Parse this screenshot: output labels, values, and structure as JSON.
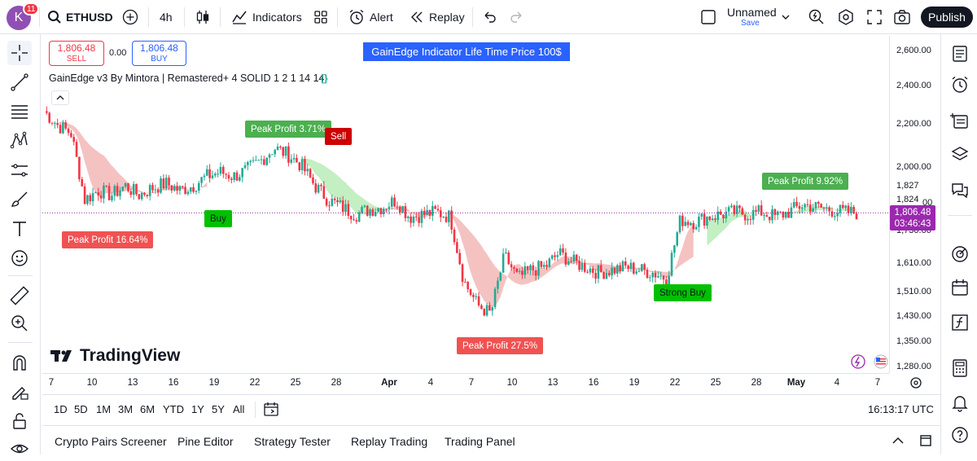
{
  "header": {
    "avatar_letter": "K",
    "notification_count": "11",
    "symbol": "ETHUSD",
    "interval": "4h",
    "indicators_label": "Indicators",
    "alert_label": "Alert",
    "replay_label": "Replay",
    "layout_name": "Unnamed",
    "save_label": "Save",
    "publish_label": "Publish"
  },
  "trade": {
    "sell_price": "1,806.48",
    "sell_label": "SELL",
    "spread": "0.00",
    "buy_price": "1,806.48",
    "buy_label": "BUY"
  },
  "banner_text": "GainEdge Indicator Life Time Price 100$",
  "indicator_legend": "GainEdge v3 By Mintora | Remastered+ 4 SOLID 1 2 1 14 14",
  "indicator_code_icon": "{}",
  "watermark": "TradingView",
  "colors": {
    "up_candle": "#22ab94",
    "down_candle": "#f23645",
    "bull_ribbon": "#b9ecb9",
    "bear_ribbon": "#f3b7b7",
    "price_line": "#9c27b0",
    "accent": "#2962ff"
  },
  "signals": [
    {
      "text": "Peak Profit 3.71%",
      "style": "green"
    },
    {
      "text": "Sell",
      "style": "dark"
    },
    {
      "text": "Buy",
      "style": "bright"
    },
    {
      "text": "Peak Profit 16.64%",
      "style": "red"
    },
    {
      "text": "Peak Profit 9.92%",
      "style": "green"
    },
    {
      "text": "Strong Buy",
      "style": "bright"
    },
    {
      "text": "Peak Profit 27.5%",
      "style": "red"
    }
  ],
  "price_scale": {
    "labels": [
      "2,600.00",
      "2,400.00",
      "2,200.00",
      "2,000.00",
      "1,827",
      "1,824",
      "00",
      "1,730.00",
      "1,610.00",
      "1,510.00",
      "1,430.00",
      "1,350.00",
      "1,280.00"
    ],
    "current_price": "1,806.48",
    "countdown": "03:46:43"
  },
  "time_axis": [
    "7",
    "10",
    "13",
    "16",
    "19",
    "22",
    "25",
    "28",
    "Apr",
    "4",
    "7",
    "10",
    "13",
    "16",
    "19",
    "22",
    "25",
    "28",
    "May",
    "4",
    "7"
  ],
  "ranges": [
    "1D",
    "5D",
    "1M",
    "3M",
    "6M",
    "YTD",
    "1Y",
    "5Y",
    "All"
  ],
  "clock": "16:13:17 UTC",
  "bottom_tabs": [
    "Crypto Pairs Screener",
    "Pine Editor",
    "Strategy Tester",
    "Replay Trading",
    "Trading Panel"
  ],
  "chart_data": {
    "type": "candlestick",
    "symbol": "ETHUSD",
    "interval": "4h",
    "y_scale": "log",
    "ylim": [
      1250,
      2700
    ],
    "x_categories": [
      "7",
      "10",
      "13",
      "16",
      "19",
      "22",
      "25",
      "28",
      "Apr",
      "4",
      "7",
      "10",
      "13",
      "16",
      "19",
      "22",
      "25",
      "28",
      "May",
      "4",
      "7"
    ],
    "close_path": [
      [
        "7",
        2270
      ],
      [
        "8",
        2200
      ],
      [
        "9",
        2160
      ],
      [
        "10",
        1860
      ],
      [
        "11",
        1900
      ],
      [
        "12",
        1880
      ],
      [
        "13",
        1920
      ],
      [
        "14",
        1880
      ],
      [
        "15",
        1910
      ],
      [
        "16",
        1930
      ],
      [
        "17",
        1900
      ],
      [
        "18",
        1920
      ],
      [
        "19",
        1960
      ],
      [
        "20",
        1980
      ],
      [
        "21",
        1960
      ],
      [
        "22",
        1990
      ],
      [
        "23",
        2030
      ],
      [
        "24",
        2090
      ],
      [
        "25",
        2060
      ],
      [
        "26",
        2010
      ],
      [
        "27",
        1920
      ],
      [
        "28",
        1860
      ],
      [
        "29",
        1830
      ],
      [
        "30",
        1800
      ],
      [
        "31",
        1820
      ],
      [
        "Apr",
        1830
      ],
      [
        "2",
        1860
      ],
      [
        "3",
        1790
      ],
      [
        "4",
        1800
      ],
      [
        "5",
        1810
      ],
      [
        "6",
        1790
      ],
      [
        "7",
        1550
      ],
      [
        "8",
        1470
      ],
      [
        "9",
        1440
      ],
      [
        "10",
        1640
      ],
      [
        "11",
        1560
      ],
      [
        "12",
        1590
      ],
      [
        "13",
        1600
      ],
      [
        "14",
        1650
      ],
      [
        "15",
        1620
      ],
      [
        "16",
        1600
      ],
      [
        "17",
        1580
      ],
      [
        "18",
        1590
      ],
      [
        "19",
        1600
      ],
      [
        "20",
        1590
      ],
      [
        "21",
        1580
      ],
      [
        "22",
        1560
      ],
      [
        "23",
        1780
      ],
      [
        "24",
        1770
      ],
      [
        "25",
        1790
      ],
      [
        "26",
        1800
      ],
      [
        "27",
        1810
      ],
      [
        "28",
        1800
      ],
      [
        "29",
        1810
      ],
      [
        "30",
        1790
      ],
      [
        "May",
        1810
      ],
      [
        "2",
        1840
      ],
      [
        "3",
        1830
      ],
      [
        "4",
        1820
      ],
      [
        "5",
        1810
      ],
      [
        "6",
        1806.48
      ]
    ],
    "ribbon_bull_sections": [
      [
        19,
        25
      ],
      [
        49,
        60
      ]
    ],
    "ribbon_bear_sections": [
      [
        0,
        12
      ],
      [
        25,
        48
      ]
    ],
    "current_price": 1806.48
  }
}
